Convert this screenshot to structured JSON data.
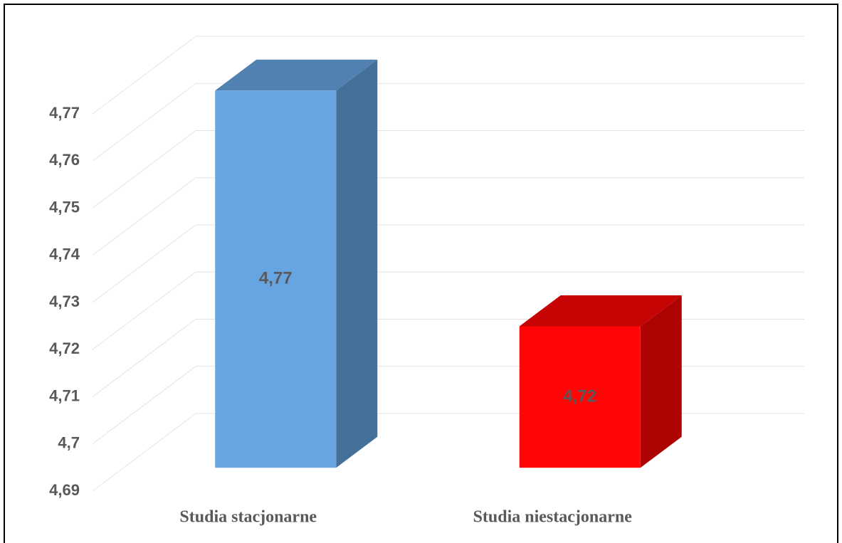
{
  "chart_data": {
    "type": "bar3d",
    "categories": [
      "Studia stacjonarne",
      "Studia niestacjonarne"
    ],
    "values": [
      4.77,
      4.72
    ],
    "value_labels": [
      "4,77",
      "4,72"
    ],
    "colors": [
      "#66a5e1",
      "#ff0505"
    ],
    "ylim": [
      4.69,
      4.77
    ],
    "yticks": [
      {
        "value": 4.69,
        "label": "4,69"
      },
      {
        "value": 4.7,
        "label": "4,7"
      },
      {
        "value": 4.71,
        "label": "4,71"
      },
      {
        "value": 4.72,
        "label": "4,72"
      },
      {
        "value": 4.73,
        "label": "4,73"
      },
      {
        "value": 4.74,
        "label": "4,74"
      },
      {
        "value": 4.75,
        "label": "4,75"
      },
      {
        "value": 4.76,
        "label": "4,76"
      },
      {
        "value": 4.77,
        "label": "4,77"
      }
    ],
    "grid": true
  }
}
